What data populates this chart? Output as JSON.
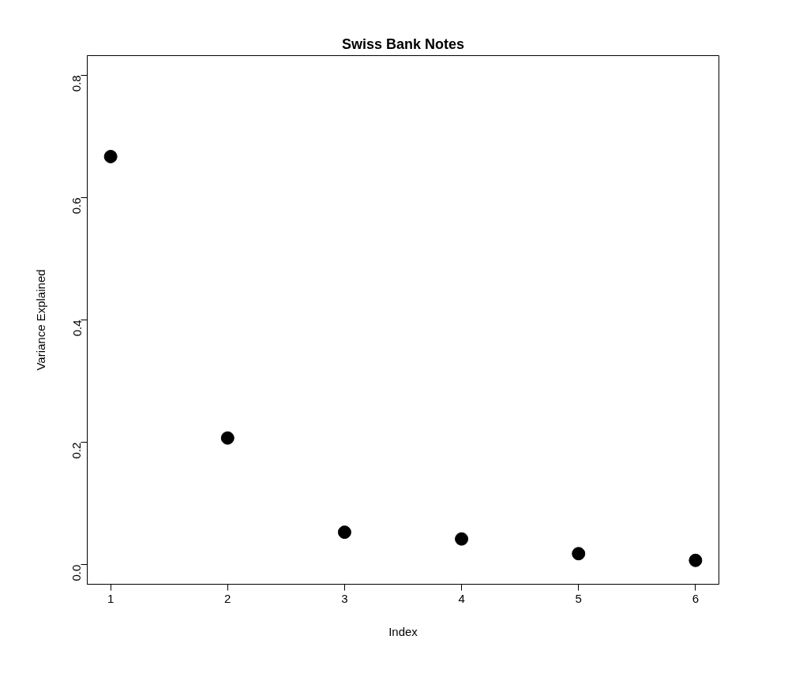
{
  "chart_data": {
    "type": "scatter",
    "title": "Swiss Bank Notes",
    "xlabel": "Index",
    "ylabel": "Variance Explained",
    "x": [
      1,
      2,
      3,
      4,
      5,
      6
    ],
    "values": [
      0.667,
      0.207,
      0.053,
      0.042,
      0.018,
      0.007
    ],
    "color": "#000000",
    "marker": "circle",
    "xlim": [
      0.8,
      6.2
    ],
    "xticks": [
      1,
      2,
      3,
      4,
      5,
      6
    ],
    "ylim": [
      -0.032,
      0.832
    ],
    "yticks": [
      {
        "value": 0,
        "label": "0.0"
      },
      {
        "value": 0.2,
        "label": "0.2"
      },
      {
        "value": 0.4,
        "label": "0.4"
      },
      {
        "value": 0.6,
        "label": "0.6"
      },
      {
        "value": 0.8,
        "label": "0.8"
      }
    ],
    "grid": false
  }
}
